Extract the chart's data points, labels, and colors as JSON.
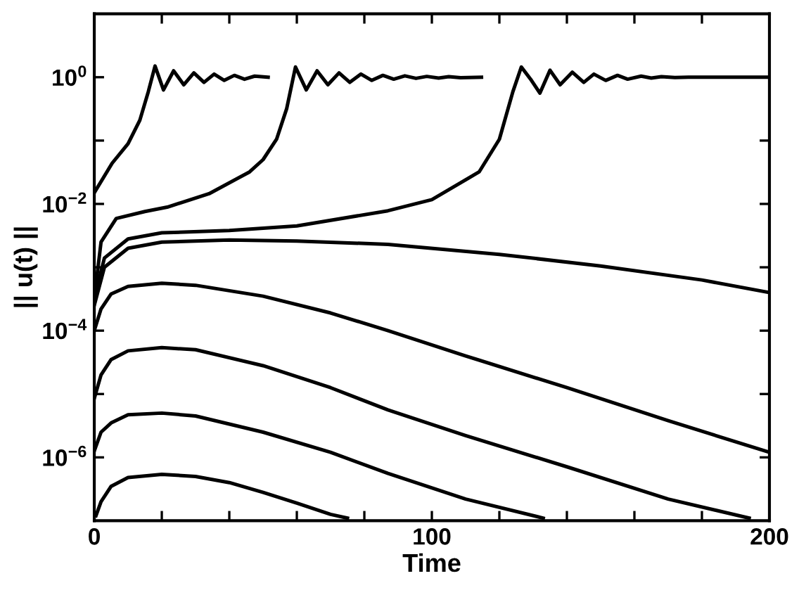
{
  "chart_data": {
    "type": "line",
    "xlabel": "Time",
    "ylabel": "|| u(t) ||",
    "log": "y",
    "grid": false,
    "marker": "none",
    "line_style": "solid",
    "xlim": [
      0,
      200
    ],
    "ylim": [
      1e-07,
      10
    ],
    "xticks": [
      0,
      {
        "value": 20,
        "label": null
      },
      {
        "value": 40,
        "label": null
      },
      {
        "value": 60,
        "label": null
      },
      {
        "value": 80,
        "label": null
      },
      100,
      {
        "value": 120,
        "label": null
      },
      {
        "value": 140,
        "label": null
      },
      {
        "value": 160,
        "label": null
      },
      {
        "value": 180,
        "label": null
      },
      200
    ],
    "yticks": [
      {
        "value": 1e-06,
        "label": "10$^{−6}$"
      },
      {
        "value": 1e-05,
        "label": null
      },
      {
        "value": 0.0001,
        "label": "10$^{−4}$"
      },
      {
        "value": 0.001,
        "label": null
      },
      {
        "value": 0.01,
        "label": "10$^{−2}$"
      },
      {
        "value": 0.1,
        "label": null
      },
      {
        "value": 1,
        "label": "10$^{0}$"
      }
    ],
    "series": [
      {
        "color": "#000000",
        "x": [
          0.5,
          2,
          5,
          10,
          20,
          30,
          40,
          50,
          60,
          70,
          75
        ],
        "values": [
          1.2e-07,
          2e-07,
          3.5e-07,
          4.8e-07,
          5.4e-07,
          5e-07,
          4e-07,
          2.8e-07,
          1.9e-07,
          1.26e-07,
          1.1e-07
        ]
      },
      {
        "color": "#000000",
        "x": [
          0,
          2,
          5,
          10,
          20,
          30,
          50,
          70,
          87,
          110,
          133
        ],
        "values": [
          1.26e-06,
          2.5e-06,
          3.5e-06,
          4.7e-06,
          5e-06,
          4.5e-06,
          2.5e-06,
          1.2e-06,
          5.6e-07,
          2.2e-07,
          1.1e-07
        ]
      },
      {
        "color": "#000000",
        "x": [
          0,
          2,
          5,
          10,
          20,
          30,
          50,
          70,
          87,
          110,
          140,
          170,
          194
        ],
        "values": [
          8.5e-06,
          2e-05,
          3.5e-05,
          4.8e-05,
          5.4e-05,
          5e-05,
          2.8e-05,
          1.26e-05,
          5.6e-06,
          2.2e-06,
          7.1e-07,
          2.2e-07,
          1.1e-07
        ]
      },
      {
        "color": "#000000",
        "x": [
          0,
          2,
          5,
          10,
          20,
          30,
          50,
          70,
          87,
          110,
          140,
          170,
          200
        ],
        "values": [
          0.0001,
          0.00022,
          0.00038,
          0.0005,
          0.00056,
          0.00052,
          0.00035,
          0.00019,
          0.0001,
          4e-05,
          1.26e-05,
          3.8e-06,
          1.2e-06
        ]
      },
      {
        "color": "#000000",
        "x": [
          0,
          3,
          10,
          20,
          40,
          60,
          87,
          120,
          150,
          180,
          200
        ],
        "values": [
          0.00025,
          0.001,
          0.002,
          0.0025,
          0.0027,
          0.0026,
          0.0023,
          0.0016,
          0.00105,
          0.00063,
          0.0004
        ]
      },
      {
        "color": "#000000",
        "x": [
          0,
          3,
          10,
          20,
          40,
          60,
          87,
          100,
          114,
          120,
          124,
          126.5,
          129.5,
          132,
          135,
          138,
          141.6,
          145,
          148,
          151.5,
          155,
          158,
          162,
          165,
          168,
          172,
          176,
          200
        ],
        "values": [
          0.00032,
          0.0014,
          0.0028,
          0.0035,
          0.0038,
          0.0045,
          0.0078,
          0.0117,
          0.032,
          0.105,
          0.59,
          1.45,
          0.89,
          0.56,
          1.29,
          0.76,
          1.2,
          0.83,
          1.12,
          0.89,
          1.07,
          0.93,
          1.04,
          0.97,
          1.02,
          0.99,
          1.0,
          1.0
        ]
      },
      {
        "color": "#000000",
        "x": [
          0,
          2,
          6.5,
          15,
          21.6,
          34,
          46,
          50,
          54,
          57,
          59.6,
          62.8,
          66,
          69.2,
          72.5,
          75.7,
          79,
          82.2,
          85.5,
          88.7,
          92,
          95.3,
          98.5,
          102,
          105,
          108.5,
          114.7
        ],
        "values": [
          0.00032,
          0.0025,
          0.0059,
          0.0076,
          0.0089,
          0.0145,
          0.032,
          0.05,
          0.105,
          0.32,
          1.45,
          0.63,
          1.26,
          0.76,
          1.17,
          0.83,
          1.12,
          0.89,
          1.07,
          0.93,
          1.05,
          0.96,
          1.03,
          0.97,
          1.02,
          0.98,
          1.0
        ]
      },
      {
        "color": "#000000",
        "x": [
          0,
          5.3,
          10,
          13.5,
          16,
          18,
          20.5,
          23.5,
          26.5,
          29.5,
          32.5,
          35.5,
          38.5,
          41.5,
          44.5,
          47.5,
          51.5
        ],
        "values": [
          0.015,
          0.044,
          0.089,
          0.21,
          0.59,
          1.5,
          0.63,
          1.26,
          0.76,
          1.17,
          0.83,
          1.12,
          0.89,
          1.07,
          0.93,
          1.04,
          1.0
        ]
      }
    ]
  }
}
